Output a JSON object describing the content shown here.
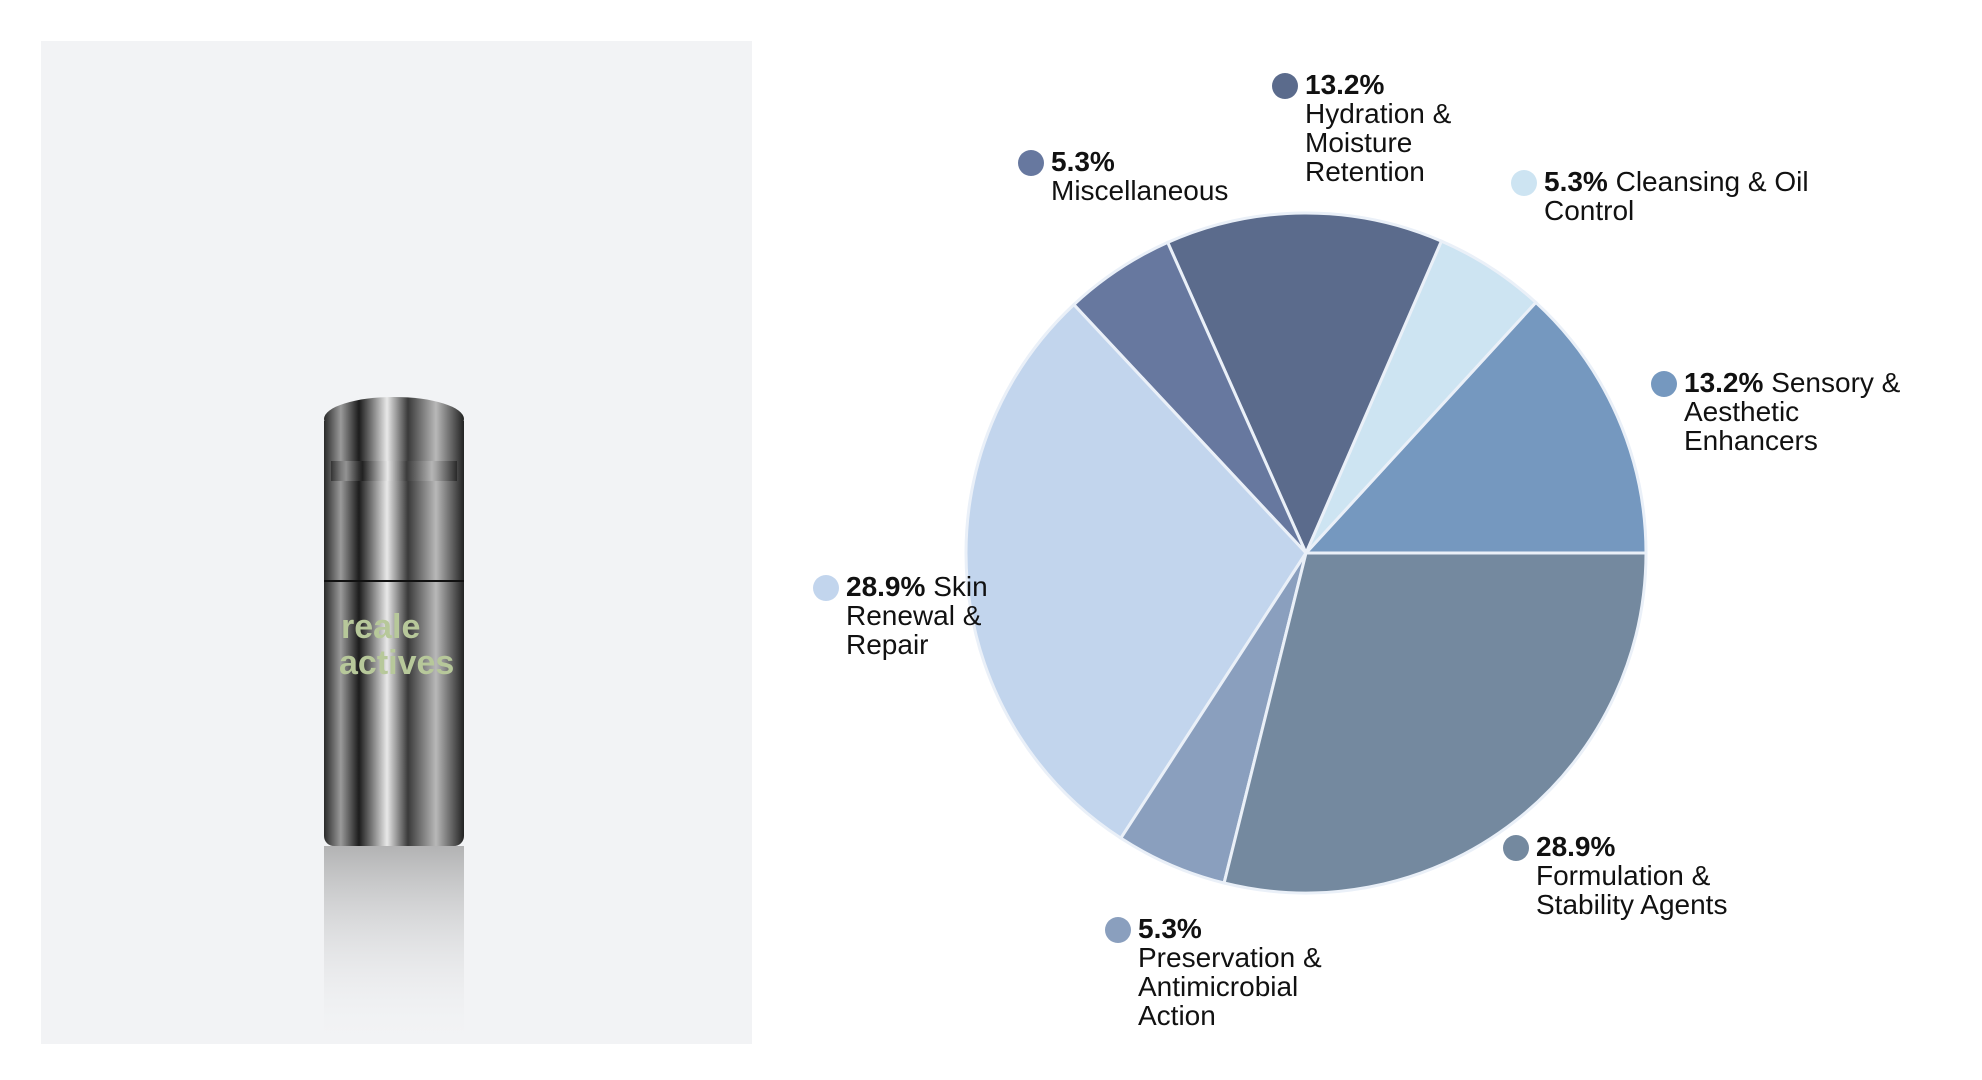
{
  "product": {
    "brand_line1": "reale",
    "brand_line2": "actives"
  },
  "chart_data": {
    "type": "pie",
    "categories": [
      "Sensory & Aesthetic Enhancers",
      "Cleansing & Oil Control",
      "Hydration & Moisture Retention",
      "Miscellaneous",
      "Skin Renewal & Repair",
      "Preservation & Antimicrobial Action",
      "Formulation & Stability Agents"
    ],
    "values": [
      13.2,
      5.3,
      13.2,
      5.3,
      28.9,
      5.3,
      28.9
    ],
    "value_labels": [
      "13.2%",
      "5.3%",
      "13.2%",
      "5.3%",
      "28.9%",
      "5.3%",
      "28.9%"
    ],
    "colors": [
      "#7598bf",
      "#cde4f2",
      "#5b6b8c",
      "#67789f",
      "#c2d5ed",
      "#8a9fbe",
      "#74899f"
    ]
  }
}
